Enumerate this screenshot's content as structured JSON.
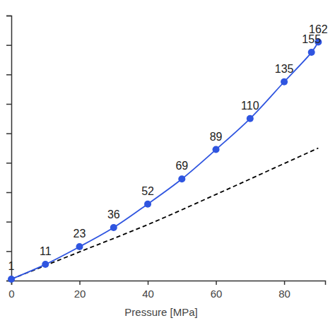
{
  "chart_data": {
    "type": "line",
    "xlabel": "Pressure [MPa]",
    "xlim": [
      0,
      92
    ],
    "xticks": [
      0,
      20,
      40,
      60,
      80
    ],
    "ylim": [
      0,
      180
    ],
    "yticks": [
      0,
      20,
      40,
      60,
      80,
      100,
      120,
      140,
      160,
      180
    ],
    "tick_labels": "x",
    "series": [
      {
        "x": [
          0,
          10,
          20,
          30,
          40,
          50,
          60,
          70,
          80,
          88,
          90
        ],
        "values": [
          1,
          11,
          23,
          36,
          52,
          69,
          89,
          110,
          135,
          155,
          162
        ],
        "color": "#2f55e0",
        "marker": "circle",
        "line_style": "solid",
        "data_labels": true
      },
      {
        "x": [
          0,
          20,
          40,
          60,
          80,
          90
        ],
        "values": [
          1,
          19.5,
          38,
          58.5,
          79.5,
          90
        ],
        "color": "#000000",
        "line_style": "dashed"
      }
    ]
  }
}
